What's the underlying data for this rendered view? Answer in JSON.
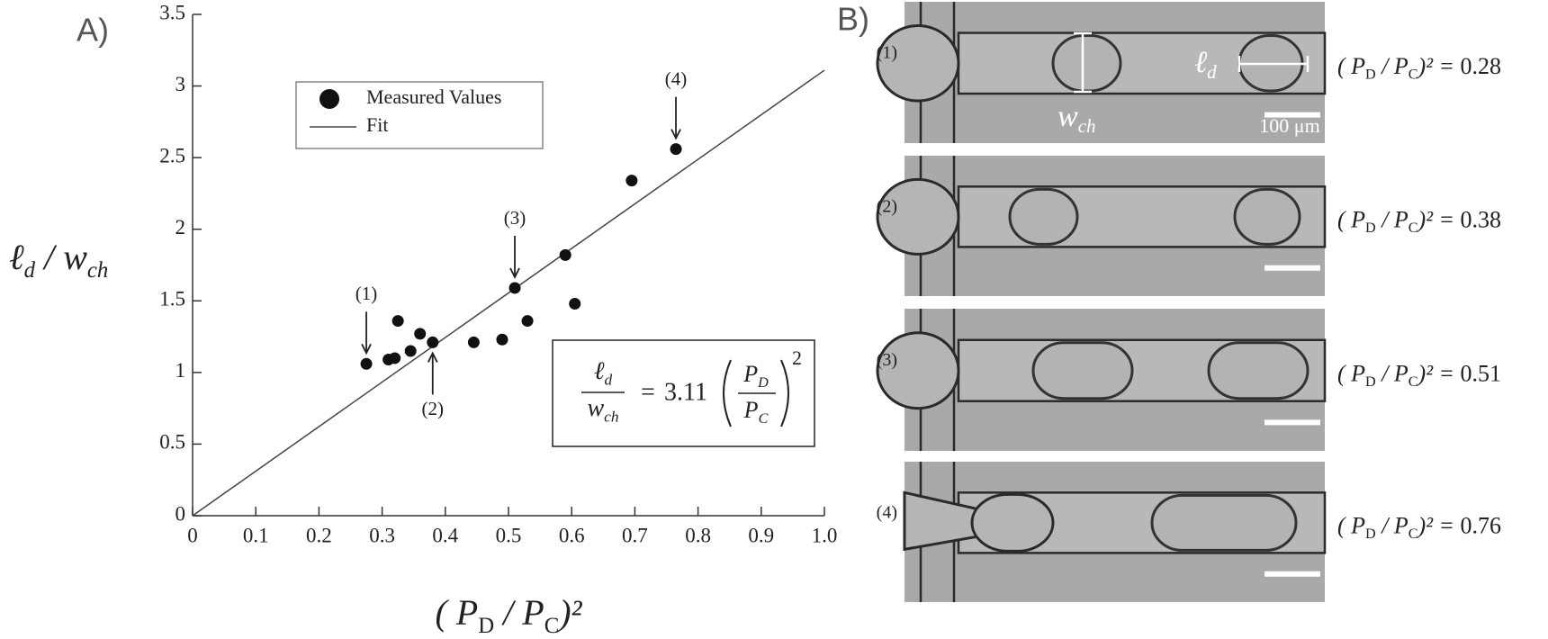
{
  "panel_labels": [
    "A)",
    "B)"
  ],
  "chart_data": {
    "type": "scatter",
    "xlabel": [
      "( P",
      "D",
      " / P",
      "C",
      ")²"
    ],
    "ylabel": [
      "ℓ",
      "d",
      " / w",
      "ch"
    ],
    "x": [
      0.275,
      0.31,
      0.32,
      0.325,
      0.345,
      0.36,
      0.38,
      0.445,
      0.49,
      0.51,
      0.53,
      0.59,
      0.605,
      0.695,
      0.765
    ],
    "series": [
      {
        "name": "Measured Values",
        "color": "#111111",
        "values": [
          1.06,
          1.09,
          1.1,
          1.36,
          1.15,
          1.27,
          1.21,
          1.21,
          1.23,
          1.59,
          1.36,
          1.82,
          1.48,
          2.34,
          2.56
        ]
      }
    ],
    "fit": {
      "name": "Fit",
      "slope": 3.11,
      "color": "#444444"
    },
    "equation": {
      "lhs_num": [
        "ℓ",
        "d"
      ],
      "lhs_den": [
        "w",
        "ch"
      ],
      "equals": "=",
      "rhs_num": [
        "P",
        "D"
      ],
      "rhs_den": [
        "P",
        "C"
      ],
      "power": "2"
    },
    "annotations": [
      "(1)",
      "(2)",
      "(3)",
      "(4)"
    ],
    "xlim": [
      0,
      1.0
    ],
    "ylim": [
      0,
      3.5
    ],
    "xticks": [
      0,
      0.1,
      0.2,
      0.3,
      0.4,
      0.5,
      0.6,
      0.7,
      0.8,
      0.9,
      {
        "value": 1.0,
        "label": "1.0"
      }
    ],
    "yticks": [
      0,
      0.5,
      1,
      1.5,
      2,
      2.5,
      3,
      3.5
    ]
  },
  "panel_b": {
    "row_labels": [
      "(1)",
      "(2)",
      "(3)",
      "(4)"
    ],
    "ratio_label": [
      "( P",
      "D",
      " / P",
      "C",
      ")² = "
    ],
    "ratios": [
      0.28,
      0.38,
      0.51,
      0.76
    ],
    "droplet_length_label": [
      "ℓ",
      "d"
    ],
    "channel_width_label": [
      "w",
      "ch"
    ],
    "scale_label": "100 μm"
  }
}
